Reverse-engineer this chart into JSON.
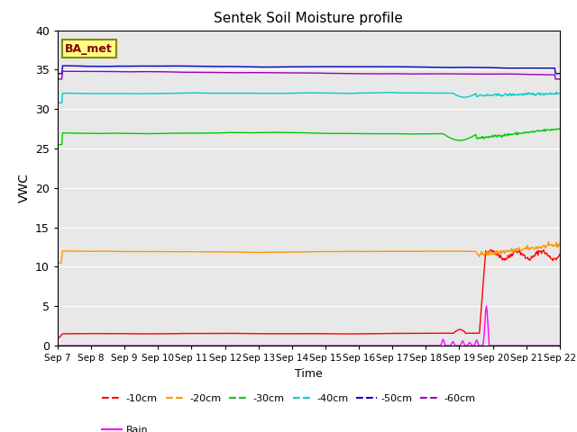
{
  "title": "Sentek Soil Moisture profile",
  "xlabel": "Time",
  "ylabel": "VWC",
  "station_label": "BA_met",
  "ylim": [
    0,
    40
  ],
  "background_color": "#e8e8e8",
  "tick_labels": [
    "Sep 7",
    "Sep 8",
    "Sep 9",
    "Sep 10",
    "Sep 11",
    "Sep 12",
    "Sep 13",
    "Sep 14",
    "Sep 15",
    "Sep 16",
    "Sep 17",
    "Sep 18",
    "Sep 19",
    "Sep 20",
    "Sep 21",
    "Sep 22"
  ],
  "yticks": [
    0,
    5,
    10,
    15,
    20,
    25,
    30,
    35,
    40
  ],
  "series_labels": [
    "-10cm",
    "-20cm",
    "-30cm",
    "-40cm",
    "-50cm",
    "-60cm",
    "Rain"
  ],
  "series_colors": [
    "#ff0000",
    "#ff9900",
    "#00cc00",
    "#00cccc",
    "#0000bb",
    "#9900bb",
    "#ff00ff"
  ],
  "legend_line_styles": [
    "--",
    "--",
    "--",
    "--",
    "--",
    "--",
    "-"
  ],
  "n_days": 15,
  "pts_per_day": 48,
  "seed": 42,
  "figsize": [
    6.4,
    4.8
  ],
  "dpi": 100
}
